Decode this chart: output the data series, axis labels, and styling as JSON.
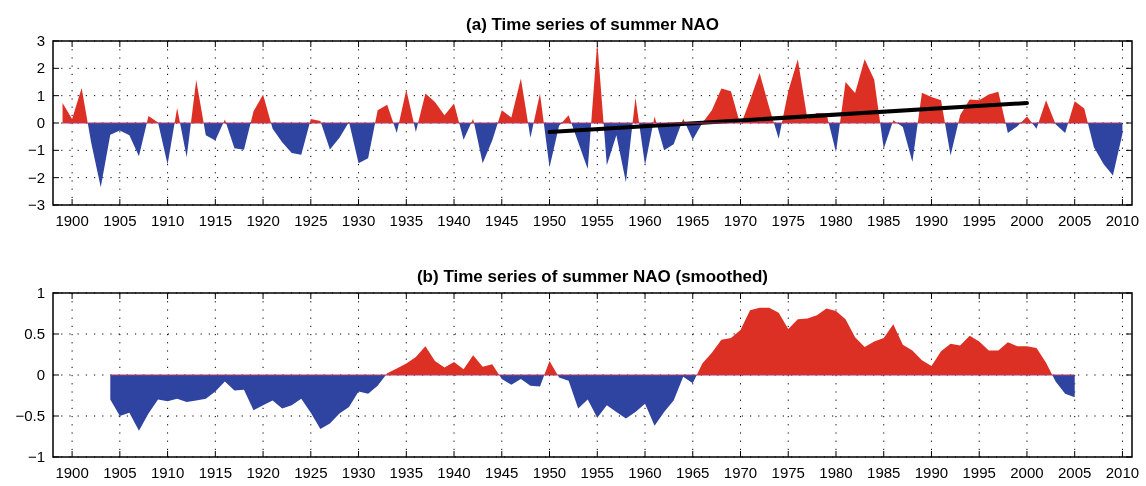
{
  "chart_data": [
    {
      "type": "area",
      "title": "(a) Time series of summer NAO",
      "xlim": [
        1898,
        2011
      ],
      "xticks": [
        1900,
        1905,
        1910,
        1915,
        1920,
        1925,
        1930,
        1935,
        1940,
        1945,
        1950,
        1955,
        1960,
        1965,
        1970,
        1975,
        1980,
        1985,
        1990,
        1995,
        2000,
        2005,
        2010
      ],
      "ylim": [
        -3,
        3
      ],
      "yticks": [
        -3,
        -2,
        -1,
        0,
        1,
        2,
        3
      ],
      "grid": true,
      "ref_lines": [
        {
          "axis": "y",
          "value": 0,
          "color": "#b03a6a"
        }
      ],
      "x": [
        1899,
        1900,
        1901,
        1902,
        1903,
        1904,
        1905,
        1906,
        1907,
        1908,
        1909,
        1910,
        1911,
        1912,
        1913,
        1914,
        1915,
        1916,
        1917,
        1918,
        1919,
        1920,
        1921,
        1922,
        1923,
        1924,
        1925,
        1926,
        1927,
        1928,
        1929,
        1930,
        1931,
        1932,
        1933,
        1934,
        1935,
        1936,
        1937,
        1938,
        1939,
        1940,
        1941,
        1942,
        1943,
        1944,
        1945,
        1946,
        1947,
        1948,
        1949,
        1950,
        1951,
        1952,
        1953,
        1954,
        1955,
        1956,
        1957,
        1958,
        1959,
        1960,
        1961,
        1962,
        1963,
        1964,
        1965,
        1966,
        1967,
        1968,
        1969,
        1970,
        1971,
        1972,
        1973,
        1974,
        1975,
        1976,
        1977,
        1978,
        1979,
        1980,
        1981,
        1982,
        1983,
        1984,
        1985,
        1986,
        1987,
        1988,
        1989,
        1990,
        1991,
        1992,
        1993,
        1994,
        1995,
        1996,
        1997,
        1998,
        1999,
        2000,
        2001,
        2002,
        2003,
        2004,
        2005,
        2006,
        2007,
        2008,
        2009,
        2010
      ],
      "series": [
        {
          "colors": [
            "#dd3025",
            "#dd3025",
            "#dd3025",
            "#2f43a0",
            "#2f43a0",
            "#2f43a0",
            "#2f43a0",
            "#2f43a0",
            "#2f43a0",
            "#dd3025",
            "#dd3025",
            "#2f43a0",
            "#dd3025",
            "#2f43a0",
            "#dd3025",
            "#2f43a0",
            "#2f43a0",
            "#dd3025",
            "#2f43a0",
            "#2f43a0",
            "#dd3025",
            "#dd3025",
            "#2f43a0",
            "#2f43a0",
            "#2f43a0",
            "#2f43a0",
            "#dd3025",
            "#dd3025",
            "#2f43a0",
            "#2f43a0",
            "#dd3025",
            "#2f43a0",
            "#2f43a0",
            "#dd3025",
            "#dd3025",
            "#2f43a0",
            "#dd3025",
            "#2f43a0",
            "#dd3025",
            "#dd3025",
            "#dd3025",
            "#dd3025",
            "#2f43a0",
            "#dd3025",
            "#2f43a0",
            "#2f43a0",
            "#dd3025",
            "#dd3025",
            "#dd3025",
            "#2f43a0",
            "#dd3025",
            "#2f43a0",
            "#2f43a0",
            "#dd3025",
            "#2f43a0",
            "#2f43a0",
            "#dd3025",
            "#2f43a0",
            "#2f43a0",
            "#2f43a0",
            "#dd3025",
            "#2f43a0",
            "#dd3025",
            "#2f43a0",
            "#2f43a0",
            "#dd3025",
            "#2f43a0",
            "#dd3025",
            "#dd3025",
            "#dd3025",
            "#dd3025",
            "#2f43a0",
            "#dd3025",
            "#dd3025",
            "#dd3025",
            "#2f43a0",
            "#dd3025",
            "#dd3025",
            "#dd3025",
            "#dd3025",
            "#dd3025",
            "#2f43a0",
            "#dd3025",
            "#dd3025",
            "#dd3025",
            "#dd3025",
            "#2f43a0",
            "#dd3025",
            "#2f43a0",
            "#2f43a0",
            "#dd3025",
            "#dd3025",
            "#dd3025",
            "#2f43a0",
            "#dd3025",
            "#dd3025",
            "#dd3025",
            "#dd3025",
            "#dd3025",
            "#2f43a0",
            "#2f43a0",
            "#dd3025",
            "#2f43a0",
            "#dd3025",
            "#2f43a0",
            "#2f43a0",
            "#dd3025",
            "#dd3025",
            "#2f43a0",
            "#2f43a0",
            "#2f43a0",
            "#2f43a0"
          ],
          "values": [
            0.73,
            0.15,
            1.28,
            -0.72,
            -2.35,
            -0.43,
            -0.27,
            -0.45,
            -1.22,
            0.26,
            0.02,
            -1.52,
            0.55,
            -1.25,
            1.57,
            -0.45,
            -0.64,
            0.13,
            -0.92,
            -0.98,
            0.43,
            1.04,
            -0.21,
            -0.7,
            -1.1,
            -1.16,
            0.15,
            0.07,
            -0.97,
            -0.54,
            0.04,
            -1.47,
            -1.29,
            0.47,
            0.67,
            -0.37,
            1.22,
            -0.33,
            1.08,
            0.77,
            0.28,
            0.71,
            -0.61,
            0.16,
            -1.47,
            -0.64,
            0.47,
            0.2,
            1.63,
            -0.54,
            1.08,
            -1.62,
            -0.1,
            0.28,
            -0.7,
            -1.68,
            2.97,
            -1.55,
            -0.45,
            -2.17,
            0.93,
            -1.55,
            0.24,
            -1.0,
            -0.78,
            0.16,
            -0.61,
            0.0,
            0.47,
            1.26,
            1.16,
            -0.09,
            0.83,
            1.83,
            0.58,
            -0.58,
            1.16,
            2.33,
            0.16,
            0.37,
            0.34,
            -1.07,
            1.5,
            1.1,
            2.33,
            1.59,
            -0.94,
            0.1,
            -0.15,
            -1.43,
            1.11,
            0.95,
            0.83,
            -1.19,
            0.28,
            0.86,
            0.83,
            1.04,
            1.14,
            -0.37,
            -0.12,
            0.24,
            -0.21,
            0.83,
            -0.05,
            -0.37,
            0.8,
            0.53,
            -0.88,
            -1.49,
            -1.92,
            -0.39
          ]
        },
        {
          "type": "line",
          "color": "#000000",
          "x": [
            1950,
            2000
          ],
          "values": [
            -0.33,
            0.73
          ]
        }
      ]
    },
    {
      "type": "area",
      "title": "(b) Time series of summer NAO (smoothed)",
      "xlim": [
        1898,
        2011
      ],
      "xticks": [
        1900,
        1905,
        1910,
        1915,
        1920,
        1925,
        1930,
        1935,
        1940,
        1945,
        1950,
        1955,
        1960,
        1965,
        1970,
        1975,
        1980,
        1985,
        1990,
        1995,
        2000,
        2005,
        2010
      ],
      "ylim": [
        -1,
        1
      ],
      "yticks": [
        -1,
        -0.5,
        0,
        0.5,
        1
      ],
      "grid": true,
      "ref_lines": [
        {
          "axis": "y",
          "value": 0,
          "color": "#b03a6a"
        }
      ],
      "x": [
        1904,
        1905,
        1906,
        1907,
        1908,
        1909,
        1910,
        1911,
        1912,
        1913,
        1914,
        1915,
        1916,
        1917,
        1918,
        1919,
        1920,
        1921,
        1922,
        1923,
        1924,
        1925,
        1926,
        1927,
        1928,
        1929,
        1930,
        1931,
        1932,
        1933,
        1934,
        1935,
        1936,
        1937,
        1938,
        1939,
        1940,
        1941,
        1942,
        1943,
        1944,
        1945,
        1946,
        1947,
        1948,
        1949,
        1950,
        1951,
        1952,
        1953,
        1954,
        1955,
        1956,
        1957,
        1958,
        1959,
        1960,
        1961,
        1962,
        1963,
        1964,
        1965,
        1966,
        1967,
        1968,
        1969,
        1970,
        1971,
        1972,
        1973,
        1974,
        1975,
        1976,
        1977,
        1978,
        1979,
        1980,
        1981,
        1982,
        1983,
        1984,
        1985,
        1986,
        1987,
        1988,
        1989,
        1990,
        1991,
        1992,
        1993,
        1994,
        1995,
        1996,
        1997,
        1998,
        1999,
        2000,
        2001,
        2002,
        2003,
        2004,
        2005
      ],
      "series": [
        {
          "colors": [
            "#2f43a0",
            "#2f43a0",
            "#2f43a0",
            "#2f43a0",
            "#2f43a0",
            "#2f43a0",
            "#2f43a0",
            "#2f43a0",
            "#2f43a0",
            "#2f43a0",
            "#2f43a0",
            "#2f43a0",
            "#2f43a0",
            "#2f43a0",
            "#2f43a0",
            "#2f43a0",
            "#2f43a0",
            "#2f43a0",
            "#2f43a0",
            "#2f43a0",
            "#2f43a0",
            "#2f43a0",
            "#2f43a0",
            "#2f43a0",
            "#2f43a0",
            "#2f43a0",
            "#2f43a0",
            "#2f43a0",
            "#2f43a0",
            "#dd3025",
            "#dd3025",
            "#dd3025",
            "#dd3025",
            "#dd3025",
            "#dd3025",
            "#dd3025",
            "#dd3025",
            "#dd3025",
            "#dd3025",
            "#dd3025",
            "#dd3025",
            "#2f43a0",
            "#2f43a0",
            "#2f43a0",
            "#2f43a0",
            "#2f43a0",
            "#dd3025",
            "#2f43a0",
            "#2f43a0",
            "#2f43a0",
            "#2f43a0",
            "#2f43a0",
            "#2f43a0",
            "#2f43a0",
            "#2f43a0",
            "#2f43a0",
            "#2f43a0",
            "#2f43a0",
            "#2f43a0",
            "#2f43a0",
            "#2f43a0",
            "#2f43a0",
            "#dd3025",
            "#dd3025",
            "#dd3025",
            "#dd3025",
            "#dd3025",
            "#dd3025",
            "#dd3025",
            "#dd3025",
            "#dd3025",
            "#dd3025",
            "#dd3025",
            "#dd3025",
            "#dd3025",
            "#dd3025",
            "#dd3025",
            "#dd3025",
            "#dd3025",
            "#dd3025",
            "#dd3025",
            "#dd3025",
            "#dd3025",
            "#dd3025",
            "#dd3025",
            "#dd3025",
            "#dd3025",
            "#dd3025",
            "#dd3025",
            "#dd3025",
            "#dd3025",
            "#dd3025",
            "#dd3025",
            "#dd3025",
            "#dd3025",
            "#dd3025",
            "#dd3025",
            "#dd3025",
            "#dd3025",
            "#2f43a0",
            "#2f43a0",
            "#2f43a0"
          ],
          "values": [
            -0.3,
            -0.5,
            -0.46,
            -0.68,
            -0.47,
            -0.3,
            -0.32,
            -0.29,
            -0.33,
            -0.31,
            -0.29,
            -0.2,
            -0.08,
            -0.19,
            -0.18,
            -0.43,
            -0.37,
            -0.31,
            -0.41,
            -0.37,
            -0.29,
            -0.46,
            -0.66,
            -0.59,
            -0.47,
            -0.39,
            -0.2,
            -0.23,
            -0.13,
            0.02,
            0.08,
            0.14,
            0.22,
            0.35,
            0.17,
            0.09,
            0.16,
            0.07,
            0.24,
            0.1,
            0.13,
            -0.05,
            -0.12,
            -0.05,
            -0.13,
            -0.14,
            0.17,
            -0.03,
            -0.07,
            -0.41,
            -0.3,
            -0.52,
            -0.37,
            -0.45,
            -0.53,
            -0.45,
            -0.35,
            -0.62,
            -0.45,
            -0.31,
            -0.02,
            -0.1,
            0.14,
            0.27,
            0.43,
            0.45,
            0.55,
            0.79,
            0.82,
            0.82,
            0.76,
            0.56,
            0.68,
            0.69,
            0.73,
            0.81,
            0.78,
            0.68,
            0.46,
            0.34,
            0.41,
            0.45,
            0.62,
            0.37,
            0.3,
            0.18,
            0.11,
            0.29,
            0.38,
            0.36,
            0.48,
            0.41,
            0.3,
            0.3,
            0.4,
            0.35,
            0.35,
            0.33,
            0.15,
            -0.08,
            -0.23,
            -0.27
          ]
        }
      ]
    }
  ]
}
